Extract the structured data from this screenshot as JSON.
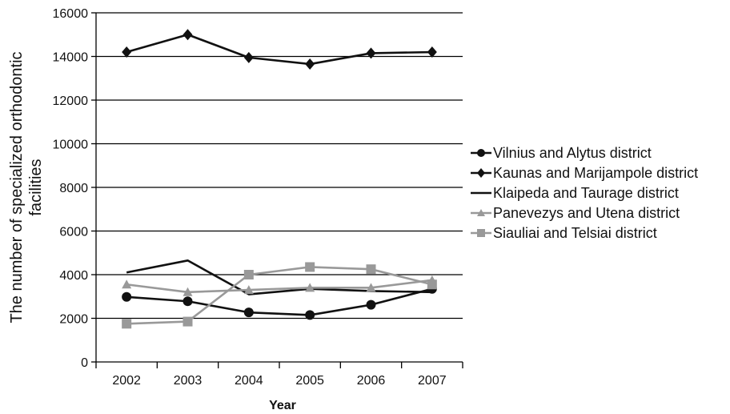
{
  "chart_data": {
    "type": "line",
    "xlabel": "Year",
    "ylabel": "The number of specialized orthodontic facilities",
    "ylabel_lines": [
      "The number of specialized orthodontic",
      "facilities"
    ],
    "x": [
      "2002",
      "2003",
      "2004",
      "2005",
      "2006",
      "2007"
    ],
    "ylim": [
      0,
      16000
    ],
    "yticks": [
      "0",
      "2000",
      "4000",
      "6000",
      "8000",
      "10000",
      "12000",
      "14000",
      "16000"
    ],
    "grid": "horizontal",
    "legend_position": "right",
    "series": [
      {
        "name": "Vilnius and Alytus district",
        "values": [
          2980,
          2780,
          2270,
          2150,
          2620,
          3350
        ],
        "color": "#111111",
        "marker": "circle"
      },
      {
        "name": "Kaunas and Marijampole district",
        "values": [
          14200,
          15000,
          13950,
          13650,
          14150,
          14200
        ],
        "color": "#111111",
        "marker": "diamond"
      },
      {
        "name": "Klaipeda and Taurage district",
        "values": [
          4100,
          4650,
          3100,
          3350,
          3250,
          3200
        ],
        "color": "#111111",
        "marker": "none"
      },
      {
        "name": "Panevezys and Utena district",
        "values": [
          3550,
          3200,
          3300,
          3400,
          3400,
          3750
        ],
        "color": "#999999",
        "marker": "triangle"
      },
      {
        "name": "Siauliai and Telsiai district",
        "values": [
          1750,
          1850,
          4000,
          4350,
          4250,
          3550
        ],
        "color": "#999999",
        "marker": "square"
      }
    ]
  }
}
